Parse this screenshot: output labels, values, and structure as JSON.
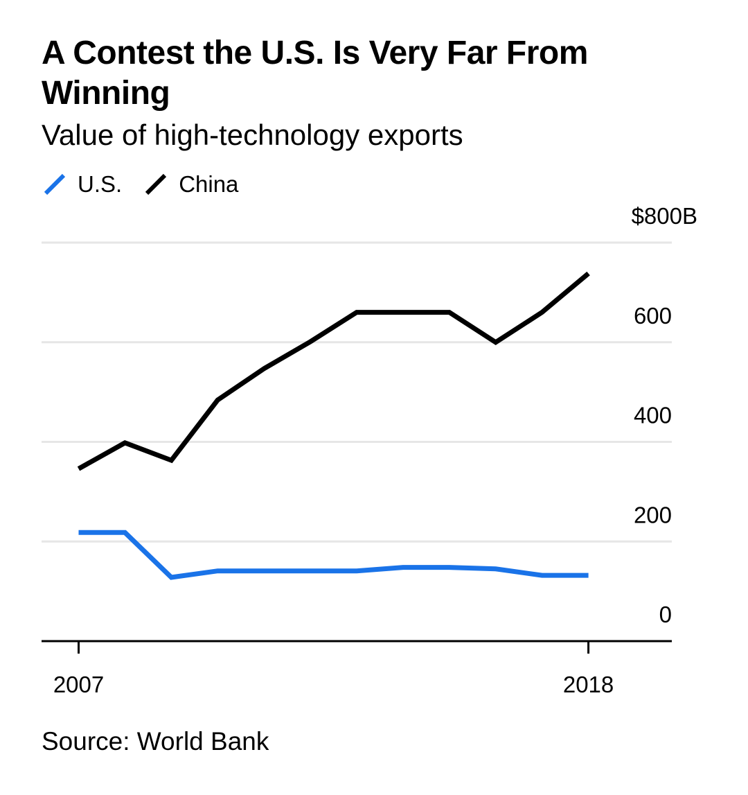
{
  "header": {
    "title": "A Contest the U.S. Is Very Far From Winning",
    "subtitle": "Value of high-technology exports"
  },
  "footer": {
    "source": "Source: World Bank"
  },
  "colors": {
    "us": "#1a73e8",
    "china": "#000000",
    "grid": "#e6e6e6",
    "axis": "#000000"
  },
  "chart_data": {
    "type": "line",
    "title": "A Contest the U.S. Is Very Far From Winning",
    "subtitle": "Value of high-technology exports",
    "xlabel": "",
    "ylabel": "",
    "x": [
      2007,
      2008,
      2009,
      2010,
      2011,
      2012,
      2013,
      2014,
      2015,
      2016,
      2017,
      2018
    ],
    "x_tick_labels": [
      {
        "value": 2007,
        "label": "2007"
      },
      {
        "value": 2018,
        "label": "2018"
      }
    ],
    "y_tick_labels": [
      {
        "value": 0,
        "label": "0"
      },
      {
        "value": 200,
        "label": "200"
      },
      {
        "value": 400,
        "label": "400"
      },
      {
        "value": 600,
        "label": "600"
      },
      {
        "value": 800,
        "label": "$800B"
      }
    ],
    "ylim": [
      0,
      800
    ],
    "xlim": [
      2006.2,
      2019.8
    ],
    "grid": true,
    "legend_position": "top-left",
    "series": [
      {
        "name": "U.S.",
        "key": "us",
        "values": [
          218,
          218,
          128,
          141,
          141,
          141,
          141,
          148,
          148,
          145,
          132,
          132
        ]
      },
      {
        "name": "China",
        "key": "china",
        "values": [
          346,
          398,
          363,
          484,
          547,
          601,
          660,
          660,
          660,
          600,
          660,
          738
        ]
      }
    ]
  }
}
